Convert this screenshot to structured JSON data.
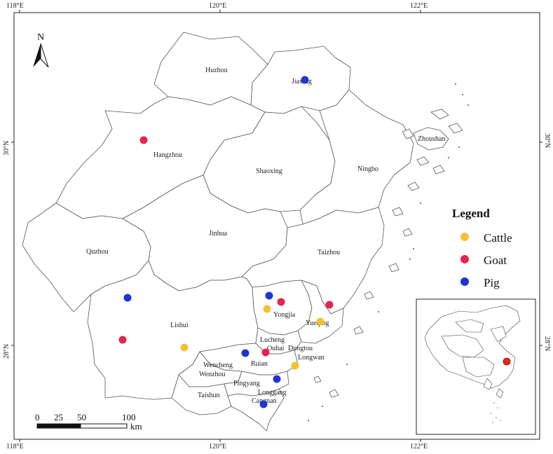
{
  "graticule": {
    "top_labels": [
      "118°E",
      "120°E",
      "122°E"
    ],
    "bottom_labels": [
      "118°E",
      "120°E",
      "122°E"
    ],
    "left_labels": [
      "30°N",
      "28°N"
    ],
    "right_labels": [
      "30°N",
      "28°N"
    ]
  },
  "north_arrow": {
    "label": "N"
  },
  "regions": [
    {
      "name": "Huzhou"
    },
    {
      "name": "Jiaxing"
    },
    {
      "name": "Hangzhou"
    },
    {
      "name": "Shaoxing"
    },
    {
      "name": "Ningbo"
    },
    {
      "name": "Zhoushan"
    },
    {
      "name": "Quzhou"
    },
    {
      "name": "Jinhua"
    },
    {
      "name": "Taizhou"
    },
    {
      "name": "Lishui"
    },
    {
      "name": "Yongjia"
    },
    {
      "name": "Yueqing"
    },
    {
      "name": "Lucheng"
    },
    {
      "name": "Ouhai"
    },
    {
      "name": "Dongtou"
    },
    {
      "name": "Longwan"
    },
    {
      "name": "Ruian"
    },
    {
      "name": "Wencheng"
    },
    {
      "name": "Wenzhou"
    },
    {
      "name": "Pingyang"
    },
    {
      "name": "Taishun"
    },
    {
      "name": "Longgang"
    },
    {
      "name": "Cangnan"
    }
  ],
  "legend": {
    "title": "Legend",
    "items": [
      {
        "label": "Cattle",
        "color": "#f2c12e"
      },
      {
        "label": "Goat",
        "color": "#e2264d"
      },
      {
        "label": "Pig",
        "color": "#1f35d1"
      }
    ]
  },
  "scale_bar": {
    "ticks": [
      "0",
      "25",
      "50",
      "100"
    ],
    "unit": "km"
  },
  "sample_points": [
    {
      "type": "Pig",
      "near": "Jiaxing"
    },
    {
      "type": "Goat",
      "near": "Hangzhou"
    },
    {
      "type": "Pig",
      "near": "Lishui"
    },
    {
      "type": "Goat",
      "near": "Lishui"
    },
    {
      "type": "Cattle",
      "near": "Lishui"
    },
    {
      "type": "Pig",
      "near": "Yongjia"
    },
    {
      "type": "Cattle",
      "near": "Yongjia"
    },
    {
      "type": "Goat",
      "near": "Yongjia"
    },
    {
      "type": "Goat",
      "near": "Yueqing"
    },
    {
      "type": "Cattle",
      "near": "Yueqing"
    },
    {
      "type": "Pig",
      "near": "Ruian"
    },
    {
      "type": "Goat",
      "near": "Ouhai"
    },
    {
      "type": "Cattle",
      "near": "Longwan"
    },
    {
      "type": "Pig",
      "near": "Pingyang"
    },
    {
      "type": "Pig",
      "near": "Cangnan"
    }
  ],
  "inset": {
    "highlight_color": "#e8231f"
  }
}
